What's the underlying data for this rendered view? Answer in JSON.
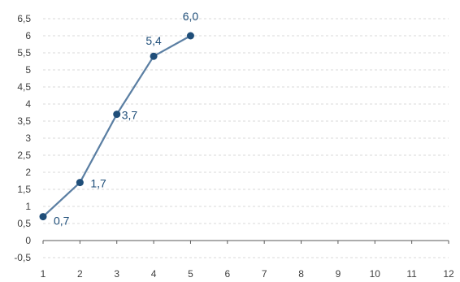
{
  "chart_data": {
    "type": "line",
    "title": "",
    "xlabel": "",
    "ylabel": "",
    "xlim": [
      1,
      12
    ],
    "ylim": [
      -0.5,
      6.5
    ],
    "x_ticks": [
      1,
      2,
      3,
      4,
      5,
      6,
      7,
      8,
      9,
      10,
      11,
      12
    ],
    "x_tick_labels": [
      "1",
      "2",
      "3",
      "4",
      "5",
      "6",
      "7",
      "8",
      "9",
      "10",
      "11",
      "12"
    ],
    "y_ticks": [
      -0.5,
      0,
      0.5,
      1,
      1.5,
      2,
      2.5,
      3,
      3.5,
      4,
      4.5,
      5,
      5.5,
      6,
      6.5
    ],
    "y_tick_labels": [
      "-0,5",
      "0",
      "0,5",
      "1",
      "1,5",
      "2",
      "2,5",
      "3",
      "3,5",
      "4",
      "4,5",
      "5",
      "5,5",
      "6",
      "6,5"
    ],
    "grid": "horizontal-dashed",
    "legend": "none",
    "series": [
      {
        "x": [
          1,
          2,
          3,
          4,
          5
        ],
        "values": [
          0.7,
          1.7,
          3.7,
          5.4,
          6.0
        ],
        "data_labels": [
          "0,7",
          "1,7",
          "3,7",
          "5,4",
          "6,0"
        ],
        "line_color": "#5b7fa3",
        "marker_color": "#1f4e79",
        "label_color": "#1f4e79"
      }
    ],
    "colors": {
      "gridline": "#d9d9d9",
      "axis": "#595959",
      "tick_text": "#404040"
    }
  }
}
